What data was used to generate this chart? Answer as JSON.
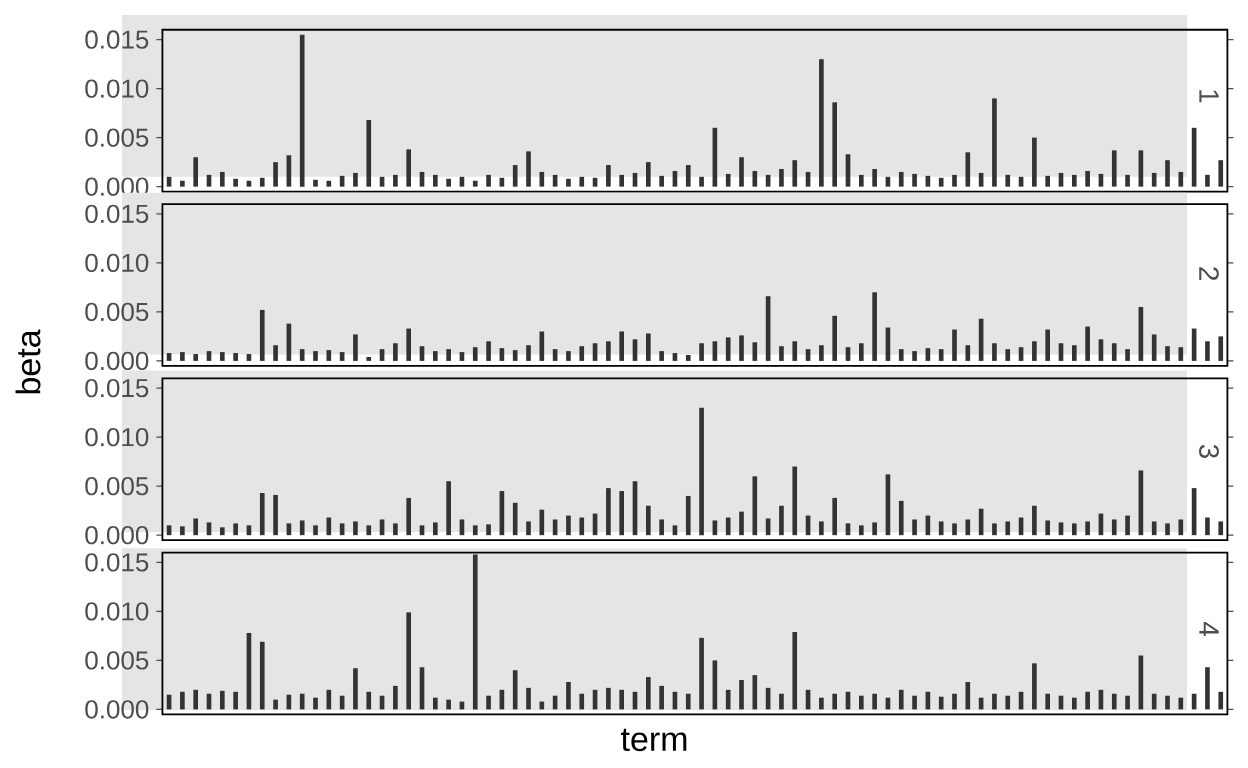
{
  "chart_data": [
    {
      "type": "bar",
      "title": "1",
      "categories": [
        null,
        null,
        null,
        null,
        null,
        null,
        null,
        null,
        null,
        null,
        null,
        null,
        null,
        null,
        null,
        null,
        null,
        null,
        null,
        null,
        null,
        null,
        null,
        null,
        null,
        null,
        null,
        null,
        null,
        null,
        null,
        null,
        null,
        null,
        null,
        null,
        null,
        null,
        null,
        null,
        null,
        null,
        null,
        null,
        null,
        null,
        null,
        null,
        null,
        null,
        null,
        null,
        null,
        null,
        null,
        null,
        null,
        null,
        null,
        null,
        null,
        null,
        null,
        null,
        null,
        null,
        null,
        null,
        null,
        null,
        null,
        null,
        null,
        null,
        null,
        null,
        null,
        null,
        null,
        null
      ],
      "color": "#333333",
      "ylim": [
        -0.0005,
        0.016
      ],
      "yticks": [
        {
          "value": 0,
          "label": "0.000"
        },
        {
          "value": 0.005,
          "label": "0.005"
        },
        {
          "value": 0.01,
          "label": "0.010"
        },
        {
          "value": 0.015,
          "label": "0.015"
        }
      ],
      "tick_labels": "y",
      "values": [
        0.001,
        0.0006,
        0.003,
        0.0012,
        0.0015,
        0.0008,
        0.0006,
        0.0009,
        0.0025,
        0.0032,
        0.0155,
        0.0007,
        0.0006,
        0.0011,
        0.0014,
        0.0068,
        0.001,
        0.0012,
        0.0038,
        0.0015,
        0.0012,
        0.0008,
        0.001,
        0.0006,
        0.0012,
        0.0009,
        0.0022,
        0.0036,
        0.0015,
        0.0012,
        0.0008,
        0.001,
        0.0009,
        0.0022,
        0.0012,
        0.0014,
        0.0025,
        0.0011,
        0.0016,
        0.0022,
        0.001,
        0.006,
        0.0013,
        0.003,
        0.0016,
        0.0012,
        0.0018,
        0.0027,
        0.0015,
        0.013,
        0.0086,
        0.0033,
        0.0012,
        0.0018,
        0.001,
        0.0015,
        0.0013,
        0.0011,
        0.0009,
        0.0012,
        0.0035,
        0.0014,
        0.009,
        0.0012,
        0.001,
        0.005,
        0.0011,
        0.0014,
        0.0012,
        0.0016,
        0.0013,
        0.0037,
        0.0012,
        0.0037,
        0.0014,
        0.0027,
        0.0015,
        0.006,
        0.0012,
        0.0027
      ]
    },
    {
      "type": "bar",
      "title": "2",
      "ylabel": "beta",
      "categories": [
        null,
        null,
        null,
        null,
        null,
        null,
        null,
        null,
        null,
        null,
        null,
        null,
        null,
        null,
        null,
        null,
        null,
        null,
        null,
        null,
        null,
        null,
        null,
        null,
        null,
        null,
        null,
        null,
        null,
        null,
        null,
        null,
        null,
        null,
        null,
        null,
        null,
        null,
        null,
        null,
        null,
        null,
        null,
        null,
        null,
        null,
        null,
        null,
        null,
        null,
        null,
        null,
        null,
        null,
        null,
        null,
        null,
        null,
        null,
        null,
        null,
        null,
        null,
        null,
        null,
        null,
        null,
        null,
        null,
        null,
        null,
        null,
        null,
        null,
        null,
        null,
        null,
        null,
        null,
        null
      ],
      "color": "#333333",
      "ylim": [
        -0.0005,
        0.016
      ],
      "yticks": [
        {
          "value": 0,
          "label": "0.000"
        },
        {
          "value": 0.005,
          "label": "0.005"
        },
        {
          "value": 0.01,
          "label": "0.010"
        },
        {
          "value": 0.015,
          "label": "0.015"
        }
      ],
      "tick_labels": "y",
      "values": [
        0.0008,
        0.0009,
        0.0007,
        0.001,
        0.0009,
        0.0008,
        0.0007,
        0.0052,
        0.0016,
        0.0038,
        0.0012,
        0.001,
        0.0011,
        0.0009,
        0.0027,
        0.0004,
        0.0012,
        0.0018,
        0.0033,
        0.0015,
        0.001,
        0.0012,
        0.0009,
        0.0014,
        0.002,
        0.0013,
        0.0011,
        0.0016,
        0.003,
        0.0012,
        0.001,
        0.0015,
        0.0018,
        0.002,
        0.003,
        0.0022,
        0.0028,
        0.001,
        0.0008,
        0.0006,
        0.0018,
        0.002,
        0.0024,
        0.0026,
        0.0019,
        0.0066,
        0.0015,
        0.002,
        0.0012,
        0.0016,
        0.0046,
        0.0014,
        0.0018,
        0.007,
        0.0034,
        0.0012,
        0.001,
        0.0013,
        0.0012,
        0.0032,
        0.0016,
        0.0043,
        0.0018,
        0.0012,
        0.0014,
        0.002,
        0.0032,
        0.0018,
        0.0016,
        0.0035,
        0.0022,
        0.0018,
        0.0012,
        0.0055,
        0.0027,
        0.0015,
        0.0014,
        0.0033,
        0.002,
        0.0025
      ]
    },
    {
      "type": "bar",
      "title": "3",
      "categories": [
        null,
        null,
        null,
        null,
        null,
        null,
        null,
        null,
        null,
        null,
        null,
        null,
        null,
        null,
        null,
        null,
        null,
        null,
        null,
        null,
        null,
        null,
        null,
        null,
        null,
        null,
        null,
        null,
        null,
        null,
        null,
        null,
        null,
        null,
        null,
        null,
        null,
        null,
        null,
        null,
        null,
        null,
        null,
        null,
        null,
        null,
        null,
        null,
        null,
        null,
        null,
        null,
        null,
        null,
        null,
        null,
        null,
        null,
        null,
        null,
        null,
        null,
        null,
        null,
        null,
        null,
        null,
        null,
        null,
        null,
        null,
        null,
        null,
        null,
        null,
        null,
        null,
        null,
        null,
        null
      ],
      "color": "#333333",
      "ylim": [
        -0.0005,
        0.016
      ],
      "yticks": [
        {
          "value": 0,
          "label": "0.000"
        },
        {
          "value": 0.005,
          "label": "0.005"
        },
        {
          "value": 0.01,
          "label": "0.010"
        },
        {
          "value": 0.015,
          "label": "0.015"
        }
      ],
      "tick_labels": "y",
      "values": [
        0.001,
        0.0009,
        0.0017,
        0.0013,
        0.0008,
        0.0012,
        0.001,
        0.0043,
        0.0041,
        0.0012,
        0.0015,
        0.001,
        0.0018,
        0.0012,
        0.0014,
        0.001,
        0.0016,
        0.0012,
        0.0038,
        0.001,
        0.0013,
        0.0055,
        0.0016,
        0.001,
        0.0011,
        0.0045,
        0.0033,
        0.0014,
        0.0026,
        0.0016,
        0.002,
        0.0018,
        0.0022,
        0.0048,
        0.0045,
        0.0055,
        0.003,
        0.0016,
        0.001,
        0.004,
        0.013,
        0.0015,
        0.0018,
        0.0024,
        0.006,
        0.0017,
        0.003,
        0.007,
        0.002,
        0.0014,
        0.0038,
        0.0012,
        0.001,
        0.0013,
        0.0062,
        0.0035,
        0.0016,
        0.002,
        0.0014,
        0.0012,
        0.0016,
        0.0027,
        0.0012,
        0.0014,
        0.0018,
        0.003,
        0.0015,
        0.0013,
        0.0012,
        0.0014,
        0.0022,
        0.0016,
        0.002,
        0.0066,
        0.0014,
        0.0012,
        0.0016,
        0.0048,
        0.0018,
        0.0014
      ]
    },
    {
      "type": "bar",
      "title": "4",
      "xlabel": "term",
      "categories": [
        null,
        null,
        null,
        null,
        null,
        null,
        null,
        null,
        null,
        null,
        null,
        null,
        null,
        null,
        null,
        null,
        null,
        null,
        null,
        null,
        null,
        null,
        null,
        null,
        null,
        null,
        null,
        null,
        null,
        null,
        null,
        null,
        null,
        null,
        null,
        null,
        null,
        null,
        null,
        null,
        null,
        null,
        null,
        null,
        null,
        null,
        null,
        null,
        null,
        null,
        null,
        null,
        null,
        null,
        null,
        null,
        null,
        null,
        null,
        null,
        null,
        null,
        null,
        null,
        null,
        null,
        null,
        null,
        null,
        null,
        null,
        null,
        null,
        null,
        null,
        null,
        null,
        null,
        null,
        null
      ],
      "color": "#333333",
      "ylim": [
        -0.0005,
        0.016
      ],
      "yticks": [
        {
          "value": 0,
          "label": "0.000"
        },
        {
          "value": 0.005,
          "label": "0.005"
        },
        {
          "value": 0.01,
          "label": "0.010"
        },
        {
          "value": 0.015,
          "label": "0.015"
        }
      ],
      "tick_labels": "y",
      "values": [
        0.0015,
        0.0018,
        0.002,
        0.0016,
        0.0019,
        0.0018,
        0.0078,
        0.0069,
        0.001,
        0.0015,
        0.0016,
        0.0012,
        0.002,
        0.0014,
        0.0042,
        0.0018,
        0.0014,
        0.0024,
        0.0099,
        0.0043,
        0.0012,
        0.001,
        0.0008,
        0.0158,
        0.0014,
        0.002,
        0.004,
        0.0022,
        0.0008,
        0.0014,
        0.0028,
        0.0016,
        0.002,
        0.0022,
        0.002,
        0.0018,
        0.0033,
        0.0024,
        0.0018,
        0.0016,
        0.0073,
        0.005,
        0.002,
        0.003,
        0.0035,
        0.0022,
        0.0016,
        0.0079,
        0.002,
        0.0012,
        0.0016,
        0.0018,
        0.0014,
        0.0016,
        0.0012,
        0.002,
        0.0014,
        0.0018,
        0.0013,
        0.0016,
        0.0028,
        0.0012,
        0.0016,
        0.0014,
        0.0018,
        0.0047,
        0.0016,
        0.0014,
        0.0012,
        0.0018,
        0.002,
        0.0016,
        0.0014,
        0.0055,
        0.0016,
        0.0014,
        0.0012,
        0.0016,
        0.0043,
        0.0018
      ]
    }
  ]
}
